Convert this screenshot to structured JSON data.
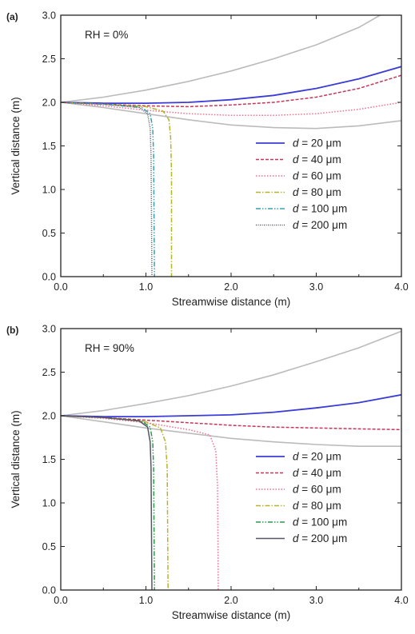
{
  "chart_data": [
    {
      "type": "line",
      "panel_label": "(a)",
      "annotation": "RH = 0%",
      "xlabel": "Streamwise distance (m)",
      "ylabel": "Vertical distance (m)",
      "xlim": [
        0.0,
        4.0
      ],
      "ylim": [
        0.0,
        3.0
      ],
      "xticks": [
        "0.0",
        "1.0",
        "2.0",
        "3.0",
        "4.0"
      ],
      "yticks": [
        "0.0",
        "0.5",
        "1.0",
        "1.5",
        "2.0",
        "2.5",
        "3.0"
      ],
      "legend_position": "center-right",
      "boundaries": [
        {
          "color": "#bbbbbb",
          "x": [
            0,
            0.5,
            1,
            1.5,
            2,
            2.5,
            3,
            3.5,
            3.75
          ],
          "y": [
            2.0,
            2.06,
            2.14,
            2.24,
            2.36,
            2.5,
            2.66,
            2.86,
            3.0
          ]
        },
        {
          "color": "#bbbbbb",
          "x": [
            0,
            0.5,
            1,
            1.5,
            2,
            2.5,
            3,
            3.5,
            4
          ],
          "y": [
            2.0,
            1.94,
            1.87,
            1.8,
            1.74,
            1.71,
            1.7,
            1.73,
            1.79
          ]
        }
      ],
      "series": [
        {
          "legend_var": "d",
          "legend_rest": " = 20 μm",
          "color": "#3b3bd6",
          "dash": "",
          "x": [
            0,
            0.5,
            1,
            1.5,
            2,
            2.5,
            3,
            3.5,
            4
          ],
          "y": [
            2.0,
            1.99,
            1.99,
            2.0,
            2.03,
            2.08,
            2.16,
            2.27,
            2.41
          ]
        },
        {
          "legend_var": "d",
          "legend_rest": " = 40 μm",
          "color": "#c0385a",
          "dash": "4,2",
          "x": [
            0,
            0.5,
            1,
            1.5,
            2,
            2.5,
            3,
            3.5,
            4
          ],
          "y": [
            2.0,
            1.98,
            1.96,
            1.95,
            1.97,
            2.0,
            2.06,
            2.16,
            2.31
          ]
        },
        {
          "legend_var": "d",
          "legend_rest": " = 60 μm",
          "color": "#ee6e8e",
          "dash": "1.5,2",
          "x": [
            0,
            0.5,
            1,
            1.5,
            2,
            2.5,
            3,
            3.5,
            4
          ],
          "y": [
            2.0,
            1.96,
            1.91,
            1.87,
            1.85,
            1.85,
            1.87,
            1.92,
            2.0
          ]
        },
        {
          "legend_var": "d",
          "legend_rest": " = 80 μm",
          "color": "#b6b42c",
          "dash": "6,2,1.5,2",
          "x": [
            0,
            0.5,
            1,
            1.2,
            1.27,
            1.29,
            1.3,
            1.3
          ],
          "y": [
            2.0,
            1.98,
            1.95,
            1.9,
            1.8,
            1.6,
            1.2,
            0.0
          ]
        },
        {
          "legend_var": "d",
          "legend_rest": " = 100 μm",
          "color": "#3aa0b0",
          "dash": "6,2,1.5,2,1.5,2",
          "x": [
            0,
            0.5,
            0.95,
            1.05,
            1.08,
            1.09,
            1.1
          ],
          "y": [
            2.0,
            1.98,
            1.94,
            1.87,
            1.7,
            1.4,
            0.0
          ]
        },
        {
          "legend_var": "d",
          "legend_rest": " = 200 μm",
          "color": "#555566",
          "dash": "1,1.5",
          "x": [
            0,
            0.5,
            0.92,
            1.02,
            1.05,
            1.06,
            1.07
          ],
          "y": [
            2.0,
            1.98,
            1.94,
            1.87,
            1.7,
            1.4,
            0.0
          ]
        }
      ]
    },
    {
      "type": "line",
      "panel_label": "(b)",
      "annotation": "RH = 90%",
      "xlabel": "Streamwise distance (m)",
      "ylabel": "Vertical distance (m)",
      "xlim": [
        0.0,
        4.0
      ],
      "ylim": [
        0.0,
        3.0
      ],
      "xticks": [
        "0.0",
        "1.0",
        "2.0",
        "3.0",
        "4.0"
      ],
      "yticks": [
        "0.0",
        "0.5",
        "1.0",
        "1.5",
        "2.0",
        "2.5",
        "3.0"
      ],
      "legend_position": "center-right",
      "boundaries": [
        {
          "color": "#bbbbbb",
          "x": [
            0,
            0.5,
            1,
            1.5,
            2,
            2.5,
            3,
            3.5,
            4
          ],
          "y": [
            2.0,
            2.06,
            2.14,
            2.23,
            2.34,
            2.47,
            2.62,
            2.78,
            2.97
          ]
        },
        {
          "color": "#bbbbbb",
          "x": [
            0,
            0.5,
            1,
            1.5,
            2,
            2.5,
            3,
            3.5,
            4
          ],
          "y": [
            2.0,
            1.93,
            1.86,
            1.8,
            1.74,
            1.7,
            1.67,
            1.65,
            1.65
          ]
        }
      ],
      "series": [
        {
          "legend_var": "d",
          "legend_rest": " = 20 μm",
          "color": "#3b3bd6",
          "dash": "",
          "x": [
            0,
            0.5,
            1,
            1.5,
            2,
            2.5,
            3,
            3.5,
            4
          ],
          "y": [
            2.0,
            1.99,
            1.99,
            2.0,
            2.01,
            2.04,
            2.09,
            2.15,
            2.24
          ]
        },
        {
          "legend_var": "d",
          "legend_rest": " = 40 μm",
          "color": "#c0385a",
          "dash": "4,2",
          "x": [
            0,
            0.5,
            1,
            1.5,
            2,
            2.5,
            3,
            3.5,
            4
          ],
          "y": [
            2.0,
            1.98,
            1.95,
            1.92,
            1.89,
            1.87,
            1.86,
            1.85,
            1.84
          ]
        },
        {
          "legend_var": "d",
          "legend_rest": " = 60 μm",
          "color": "#ee6e8e",
          "dash": "1.5,2",
          "x": [
            0,
            0.5,
            1,
            1.5,
            1.75,
            1.82,
            1.84,
            1.85
          ],
          "y": [
            2.0,
            1.97,
            1.92,
            1.84,
            1.78,
            1.6,
            1.2,
            0.0
          ]
        },
        {
          "legend_var": "d",
          "legend_rest": " = 80 μm",
          "color": "#b6b42c",
          "dash": "6,2,1.5,2",
          "x": [
            0,
            0.5,
            1,
            1.17,
            1.23,
            1.25,
            1.26
          ],
          "y": [
            2.0,
            1.98,
            1.93,
            1.86,
            1.7,
            1.4,
            0.0
          ]
        },
        {
          "legend_var": "d",
          "legend_rest": " = 100 μm",
          "color": "#2f9a4a",
          "dash": "6,2,1.5,2,1.5,2",
          "x": [
            0,
            0.5,
            0.95,
            1.05,
            1.08,
            1.09,
            1.1
          ],
          "y": [
            2.0,
            1.98,
            1.94,
            1.87,
            1.7,
            1.4,
            0.0
          ]
        },
        {
          "legend_var": "d",
          "legend_rest": " = 200 μm",
          "color": "#555566",
          "dash": "",
          "x": [
            0,
            0.5,
            0.92,
            1.02,
            1.05,
            1.06,
            1.07
          ],
          "y": [
            2.0,
            1.98,
            1.94,
            1.87,
            1.7,
            1.4,
            0.0
          ]
        }
      ]
    }
  ]
}
